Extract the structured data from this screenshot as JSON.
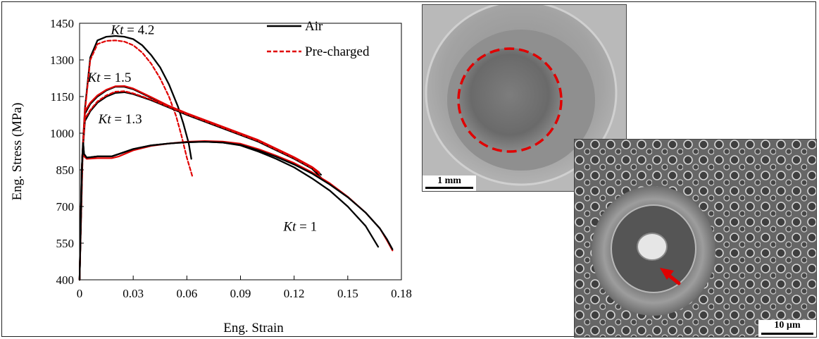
{
  "chart_data": {
    "type": "line",
    "xlabel": "Eng. Strain",
    "ylabel": "Eng. Stress (MPa)",
    "xlim": [
      0,
      0.18
    ],
    "ylim": [
      400,
      1450
    ],
    "xticks": [
      0,
      0.03,
      0.06,
      0.09,
      0.12,
      0.15,
      0.18
    ],
    "xtick_labels": [
      "0",
      "0.03",
      "0.06",
      "0.09",
      "0.12",
      "0.15",
      "0.18"
    ],
    "yticks": [
      400,
      550,
      700,
      850,
      1000,
      1150,
      1300,
      1450
    ],
    "ytick_labels": [
      "400",
      "550",
      "700",
      "850",
      "1000",
      "1150",
      "1300",
      "1450"
    ],
    "grid": false,
    "legend": {
      "placement": "top-right",
      "entries": [
        {
          "label": "Air",
          "color": "#000000",
          "style": "solid"
        },
        {
          "label": "Pre-charged",
          "color": "#e00000",
          "style": "dashed"
        }
      ]
    },
    "annotations": [
      {
        "italic": "Kt",
        "text": " = 4.2",
        "x": 0.0175,
        "y": 1405
      },
      {
        "italic": "Kt",
        "text": " = 1.5",
        "x": 0.0045,
        "y": 1210
      },
      {
        "italic": "Kt",
        "text": " = 1.3",
        "x": 0.0105,
        "y": 1040
      },
      {
        "italic": "Kt",
        "text": " = 1",
        "x": 0.114,
        "y": 600
      }
    ],
    "series": [
      {
        "color": "#000000",
        "style": "solid",
        "width": 2.3,
        "points": [
          [
            0,
            400
          ],
          [
            0.0018,
            950
          ],
          [
            0.003,
            1100
          ],
          [
            0.006,
            1310
          ],
          [
            0.01,
            1380
          ],
          [
            0.015,
            1395
          ],
          [
            0.02,
            1398
          ],
          [
            0.025,
            1395
          ],
          [
            0.03,
            1385
          ],
          [
            0.035,
            1360
          ],
          [
            0.04,
            1320
          ],
          [
            0.045,
            1270
          ],
          [
            0.05,
            1200
          ],
          [
            0.055,
            1110
          ],
          [
            0.058,
            1040
          ],
          [
            0.061,
            960
          ],
          [
            0.0625,
            895
          ]
        ]
      },
      {
        "color": "#e00000",
        "style": "dashed",
        "width": 2.2,
        "points": [
          [
            0,
            400
          ],
          [
            0.0018,
            940
          ],
          [
            0.003,
            1090
          ],
          [
            0.006,
            1300
          ],
          [
            0.01,
            1365
          ],
          [
            0.015,
            1378
          ],
          [
            0.02,
            1380
          ],
          [
            0.025,
            1375
          ],
          [
            0.03,
            1360
          ],
          [
            0.035,
            1330
          ],
          [
            0.04,
            1285
          ],
          [
            0.045,
            1225
          ],
          [
            0.05,
            1150
          ],
          [
            0.054,
            1070
          ],
          [
            0.057,
            990
          ],
          [
            0.06,
            900
          ],
          [
            0.063,
            825
          ]
        ]
      },
      {
        "color": "#000000",
        "style": "solid",
        "width": 2.3,
        "points": [
          [
            0,
            400
          ],
          [
            0.0015,
            900
          ],
          [
            0.003,
            1080
          ],
          [
            0.006,
            1120
          ],
          [
            0.01,
            1150
          ],
          [
            0.015,
            1175
          ],
          [
            0.02,
            1190
          ],
          [
            0.025,
            1190
          ],
          [
            0.03,
            1180
          ],
          [
            0.04,
            1145
          ],
          [
            0.05,
            1110
          ],
          [
            0.06,
            1080
          ],
          [
            0.08,
            1025
          ],
          [
            0.1,
            970
          ],
          [
            0.12,
            900
          ],
          [
            0.13,
            860
          ],
          [
            0.135,
            830
          ]
        ]
      },
      {
        "color": "#e00000",
        "style": "solid",
        "width": 2.2,
        "points": [
          [
            0,
            400
          ],
          [
            0.0015,
            905
          ],
          [
            0.003,
            1090
          ],
          [
            0.006,
            1125
          ],
          [
            0.01,
            1155
          ],
          [
            0.015,
            1178
          ],
          [
            0.02,
            1192
          ],
          [
            0.025,
            1193
          ],
          [
            0.03,
            1183
          ],
          [
            0.04,
            1148
          ],
          [
            0.05,
            1112
          ],
          [
            0.06,
            1082
          ],
          [
            0.08,
            1027
          ],
          [
            0.1,
            972
          ],
          [
            0.12,
            902
          ],
          [
            0.13,
            862
          ],
          [
            0.134,
            840
          ]
        ]
      },
      {
        "color": "#000000",
        "style": "solid",
        "width": 2.3,
        "points": [
          [
            0,
            400
          ],
          [
            0.0015,
            900
          ],
          [
            0.003,
            1050
          ],
          [
            0.006,
            1090
          ],
          [
            0.01,
            1125
          ],
          [
            0.015,
            1150
          ],
          [
            0.02,
            1165
          ],
          [
            0.025,
            1168
          ],
          [
            0.03,
            1160
          ],
          [
            0.04,
            1135
          ],
          [
            0.05,
            1105
          ],
          [
            0.06,
            1075
          ],
          [
            0.08,
            1020
          ],
          [
            0.1,
            965
          ],
          [
            0.12,
            895
          ],
          [
            0.13,
            855
          ],
          [
            0.135,
            818
          ]
        ]
      },
      {
        "color": "#e00000",
        "style": "dashed",
        "width": 2.2,
        "points": [
          [
            0,
            400
          ],
          [
            0.0015,
            905
          ],
          [
            0.003,
            1060
          ],
          [
            0.006,
            1095
          ],
          [
            0.01,
            1130
          ],
          [
            0.015,
            1155
          ],
          [
            0.02,
            1170
          ],
          [
            0.025,
            1172
          ],
          [
            0.03,
            1163
          ],
          [
            0.04,
            1138
          ],
          [
            0.05,
            1108
          ],
          [
            0.06,
            1078
          ],
          [
            0.08,
            1023
          ],
          [
            0.1,
            968
          ],
          [
            0.12,
            898
          ],
          [
            0.13,
            858
          ],
          [
            0.134,
            835
          ]
        ]
      },
      {
        "color": "#000000",
        "style": "solid",
        "width": 2.3,
        "points": [
          [
            0,
            400
          ],
          [
            0.0012,
            850
          ],
          [
            0.002,
            960
          ],
          [
            0.0025,
            915
          ],
          [
            0.004,
            900
          ],
          [
            0.01,
            905
          ],
          [
            0.018,
            905
          ],
          [
            0.022,
            915
          ],
          [
            0.03,
            935
          ],
          [
            0.04,
            950
          ],
          [
            0.05,
            958
          ],
          [
            0.06,
            963
          ],
          [
            0.07,
            965
          ],
          [
            0.08,
            962
          ],
          [
            0.09,
            950
          ],
          [
            0.1,
            925
          ],
          [
            0.11,
            895
          ],
          [
            0.12,
            860
          ],
          [
            0.13,
            815
          ],
          [
            0.14,
            765
          ],
          [
            0.15,
            700
          ],
          [
            0.16,
            620
          ],
          [
            0.167,
            535
          ]
        ]
      },
      {
        "color": "#e00000",
        "style": "solid",
        "width": 2.2,
        "points": [
          [
            0,
            400
          ],
          [
            0.0012,
            850
          ],
          [
            0.002,
            945
          ],
          [
            0.0025,
            905
          ],
          [
            0.004,
            895
          ],
          [
            0.01,
            898
          ],
          [
            0.018,
            898
          ],
          [
            0.022,
            905
          ],
          [
            0.03,
            930
          ],
          [
            0.04,
            948
          ],
          [
            0.05,
            958
          ],
          [
            0.06,
            965
          ],
          [
            0.07,
            968
          ],
          [
            0.08,
            966
          ],
          [
            0.09,
            957
          ],
          [
            0.1,
            935
          ],
          [
            0.11,
            908
          ],
          [
            0.12,
            878
          ],
          [
            0.13,
            840
          ],
          [
            0.14,
            795
          ],
          [
            0.15,
            740
          ],
          [
            0.16,
            675
          ],
          [
            0.168,
            610
          ],
          [
            0.172,
            560
          ],
          [
            0.175,
            520
          ]
        ]
      },
      {
        "color": "#000000",
        "style": "solid",
        "width": 2.3,
        "points": [
          [
            0,
            400
          ],
          [
            0.0012,
            850
          ],
          [
            0.002,
            960
          ],
          [
            0.0025,
            915
          ],
          [
            0.004,
            900
          ],
          [
            0.01,
            905
          ],
          [
            0.018,
            905
          ],
          [
            0.022,
            915
          ],
          [
            0.03,
            935
          ],
          [
            0.04,
            950
          ],
          [
            0.05,
            958
          ],
          [
            0.06,
            963
          ],
          [
            0.07,
            965
          ],
          [
            0.08,
            962
          ],
          [
            0.09,
            952
          ],
          [
            0.1,
            930
          ],
          [
            0.11,
            903
          ],
          [
            0.12,
            872
          ],
          [
            0.13,
            835
          ],
          [
            0.14,
            790
          ],
          [
            0.15,
            738
          ],
          [
            0.16,
            675
          ],
          [
            0.168,
            610
          ],
          [
            0.172,
            565
          ],
          [
            0.175,
            525
          ]
        ]
      }
    ]
  },
  "images": {
    "fracture_scale_label": "1 mm",
    "dimple_scale_label": "10 µm"
  }
}
